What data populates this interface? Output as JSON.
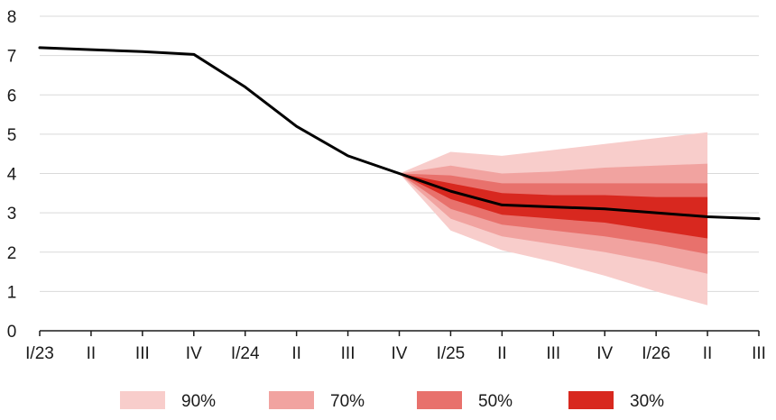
{
  "chart_data": {
    "type": "area",
    "title": "",
    "xlabel": "",
    "ylabel": "",
    "ylim": [
      0,
      8
    ],
    "yticks": [
      "0",
      "1",
      "2",
      "3",
      "4",
      "5",
      "6",
      "7",
      "8"
    ],
    "categories": [
      "I/23",
      "II",
      "III",
      "IV",
      "I/24",
      "II",
      "III",
      "IV",
      "I/25",
      "II",
      "III",
      "IV",
      "I/26",
      "II",
      "III"
    ],
    "grid": "horizontal",
    "legend_position": "bottom",
    "central_line": {
      "color": "#000000",
      "values": [
        7.2,
        7.15,
        7.1,
        7.03,
        6.2,
        5.2,
        4.45,
        4.0,
        3.55,
        3.2,
        3.15,
        3.1,
        3.0,
        2.9,
        2.85
      ]
    },
    "fan_start_index": 7,
    "fan_bands": [
      {
        "name": "90%",
        "color": "#f8cdcb",
        "upper": [
          4.0,
          4.55,
          4.45,
          4.6,
          4.75,
          4.9,
          5.05
        ],
        "lower": [
          4.0,
          2.55,
          2.05,
          1.75,
          1.4,
          1.0,
          0.65
        ]
      },
      {
        "name": "70%",
        "color": "#f1a3a0",
        "upper": [
          4.0,
          4.2,
          4.0,
          4.05,
          4.15,
          4.2,
          4.25
        ],
        "lower": [
          4.0,
          2.85,
          2.4,
          2.2,
          2.0,
          1.75,
          1.45
        ]
      },
      {
        "name": "50%",
        "color": "#e8716c",
        "upper": [
          4.0,
          3.95,
          3.75,
          3.75,
          3.75,
          3.75,
          3.75
        ],
        "lower": [
          4.0,
          3.1,
          2.7,
          2.55,
          2.4,
          2.2,
          1.95
        ]
      },
      {
        "name": "30%",
        "color": "#d8281f",
        "upper": [
          4.0,
          3.75,
          3.5,
          3.45,
          3.45,
          3.4,
          3.4
        ],
        "lower": [
          4.0,
          3.35,
          2.95,
          2.85,
          2.75,
          2.55,
          2.35
        ]
      }
    ]
  }
}
